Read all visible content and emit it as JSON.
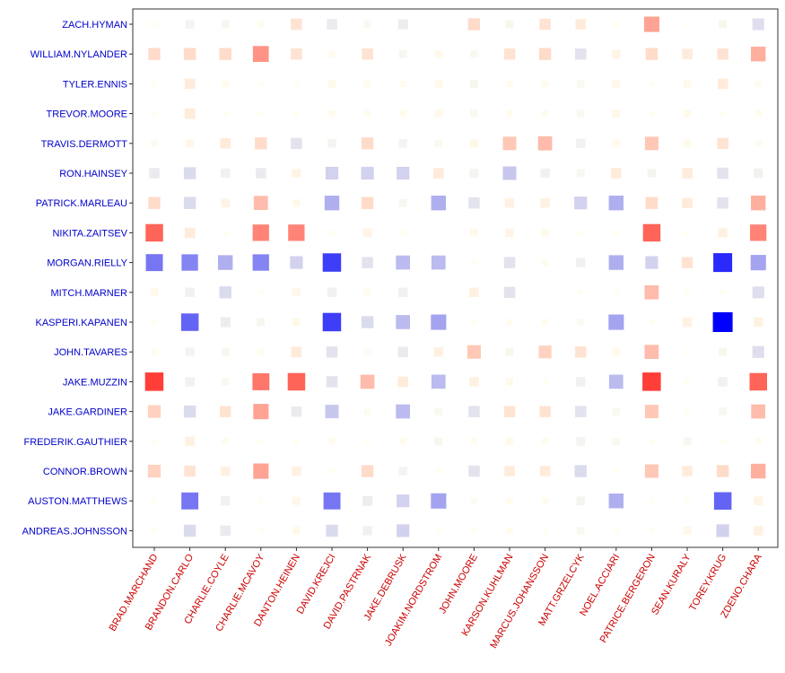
{
  "chart_data": {
    "type": "heatmap",
    "title": "",
    "xlabel": "",
    "ylabel": "",
    "grid": false,
    "legend": "none",
    "colors": {
      "negative": "#0000ff",
      "positive": "#ff0000",
      "neutral": "#ffffcc",
      "x_label": "#cc0000",
      "y_label": "#0000cc",
      "axis": "#333333"
    },
    "x_labels": [
      "BRAD.MARCHAND",
      "BRANDON.CARLO",
      "CHARLIE.COYLE",
      "CHARLIE.MCAVOY",
      "DANTON.HEINEN",
      "DAVID.KREJCI",
      "DAVID.PASTRNAK",
      "JAKE.DEBRUSK",
      "JOAKIM.NORDSTROM",
      "JOHN.MOORE",
      "KARSON.KUHLMAN",
      "MARCUS.JOHANSSON",
      "MATT.GRZELCYK",
      "NOEL.ACCIARI",
      "PATRICE.BERGERON",
      "SEAN.KURALY",
      "TOREY.KRUG",
      "ZDENO.CHARA"
    ],
    "y_labels": [
      "ZACH.HYMAN",
      "WILLIAM.NYLANDER",
      "TYLER.ENNIS",
      "TREVOR.MOORE",
      "TRAVIS.DERMOTT",
      "RON.HAINSEY",
      "PATRICK.MARLEAU",
      "NIKITA.ZAITSEV",
      "MORGAN.RIELLY",
      "MITCH.MARNER",
      "KASPERI.KAPANEN",
      "JOHN.TAVARES",
      "JAKE.MUZZIN",
      "JAKE.GARDINER",
      "FREDERIK.GAUTHIER",
      "CONNOR.BROWN",
      "AUSTON.MATTHEWS",
      "ANDREAS.JOHNSSON"
    ],
    "values": [
      [
        0.02,
        -0.12,
        -0.1,
        0.05,
        0.25,
        -0.2,
        -0.08,
        -0.18,
        0.0,
        0.3,
        -0.1,
        0.25,
        0.2,
        0.02,
        0.55,
        0.02,
        -0.1,
        -0.28
      ],
      [
        0.3,
        0.3,
        0.3,
        0.6,
        0.25,
        0.05,
        0.25,
        -0.1,
        0.08,
        -0.08,
        0.25,
        0.3,
        -0.25,
        0.12,
        0.3,
        0.2,
        0.25,
        0.5
      ],
      [
        0.02,
        0.2,
        0.05,
        0.02,
        0.02,
        0.08,
        0.05,
        0.05,
        0.08,
        -0.1,
        0.05,
        0.05,
        -0.08,
        0.1,
        0.02,
        0.08,
        0.2,
        0.05
      ],
      [
        0.02,
        0.2,
        0.02,
        0.02,
        0.02,
        0.05,
        0.05,
        0.05,
        0.08,
        -0.08,
        0.05,
        0.05,
        -0.08,
        0.1,
        0.02,
        0.08,
        0.02,
        0.05
      ],
      [
        -0.05,
        0.1,
        0.2,
        0.3,
        -0.25,
        -0.12,
        0.3,
        -0.12,
        -0.08,
        0.1,
        0.4,
        0.45,
        -0.15,
        0.08,
        0.4,
        0.08,
        0.25,
        -0.05
      ],
      [
        -0.2,
        -0.3,
        -0.15,
        -0.2,
        0.12,
        -0.35,
        -0.35,
        -0.35,
        0.2,
        -0.12,
        -0.4,
        -0.15,
        -0.1,
        0.2,
        -0.12,
        0.2,
        -0.25,
        -0.15
      ],
      [
        0.3,
        -0.3,
        0.12,
        0.45,
        0.08,
        -0.5,
        0.3,
        -0.1,
        -0.5,
        -0.25,
        0.15,
        0.15,
        -0.35,
        -0.5,
        0.3,
        0.2,
        -0.25,
        0.5
      ],
      [
        0.75,
        0.2,
        0.02,
        0.65,
        0.65,
        0.02,
        0.12,
        0.02,
        0.0,
        0.08,
        0.12,
        0.08,
        0.02,
        0.02,
        0.75,
        0.02,
        0.15,
        0.65
      ],
      [
        -0.7,
        -0.65,
        -0.5,
        -0.65,
        -0.35,
        -0.85,
        -0.25,
        -0.45,
        -0.45,
        0.02,
        -0.25,
        0.05,
        -0.15,
        -0.5,
        -0.35,
        0.25,
        -0.9,
        -0.55
      ],
      [
        0.08,
        -0.15,
        -0.3,
        0.02,
        0.1,
        -0.15,
        0.05,
        -0.15,
        0.0,
        0.15,
        -0.25,
        0.0,
        0.02,
        0.02,
        0.45,
        0.02,
        0.02,
        -0.28
      ],
      [
        0.02,
        -0.75,
        -0.18,
        -0.1,
        0.08,
        -0.85,
        -0.3,
        -0.45,
        -0.55,
        0.02,
        0.05,
        0.05,
        -0.05,
        -0.55,
        0.02,
        0.15,
        -1.0,
        0.15
      ],
      [
        0.05,
        -0.12,
        -0.1,
        0.05,
        0.2,
        -0.25,
        -0.05,
        -0.2,
        0.15,
        0.4,
        -0.1,
        0.35,
        0.25,
        0.08,
        0.45,
        0.02,
        -0.1,
        -0.28
      ],
      [
        0.85,
        -0.15,
        -0.08,
        0.7,
        0.75,
        -0.25,
        0.45,
        0.2,
        -0.45,
        0.15,
        0.08,
        0.02,
        -0.15,
        -0.45,
        0.85,
        0.02,
        -0.15,
        0.75
      ],
      [
        0.35,
        -0.3,
        0.25,
        0.55,
        -0.2,
        -0.4,
        -0.05,
        -0.45,
        -0.08,
        -0.25,
        0.25,
        0.25,
        -0.25,
        -0.08,
        0.4,
        0.02,
        -0.1,
        0.45
      ],
      [
        0.02,
        0.15,
        0.05,
        0.02,
        0.02,
        0.05,
        0.02,
        0.05,
        -0.1,
        0.05,
        0.08,
        0.05,
        -0.12,
        -0.08,
        0.02,
        -0.1,
        0.02,
        0.05
      ],
      [
        0.35,
        0.25,
        0.15,
        0.55,
        0.15,
        0.02,
        0.3,
        -0.12,
        0.02,
        -0.25,
        0.2,
        0.2,
        -0.3,
        0.02,
        0.4,
        0.2,
        0.3,
        0.5
      ],
      [
        0.02,
        -0.7,
        -0.15,
        0.02,
        0.1,
        -0.7,
        -0.18,
        -0.35,
        -0.55,
        -0.05,
        0.05,
        0.05,
        -0.12,
        -0.5,
        0.02,
        0.02,
        -0.75,
        0.12
      ],
      [
        0.02,
        -0.3,
        -0.2,
        0.02,
        0.08,
        -0.3,
        -0.15,
        -0.35,
        0.02,
        0.02,
        0.05,
        0.02,
        -0.08,
        0.02,
        0.02,
        0.1,
        -0.35,
        0.15
      ]
    ]
  }
}
